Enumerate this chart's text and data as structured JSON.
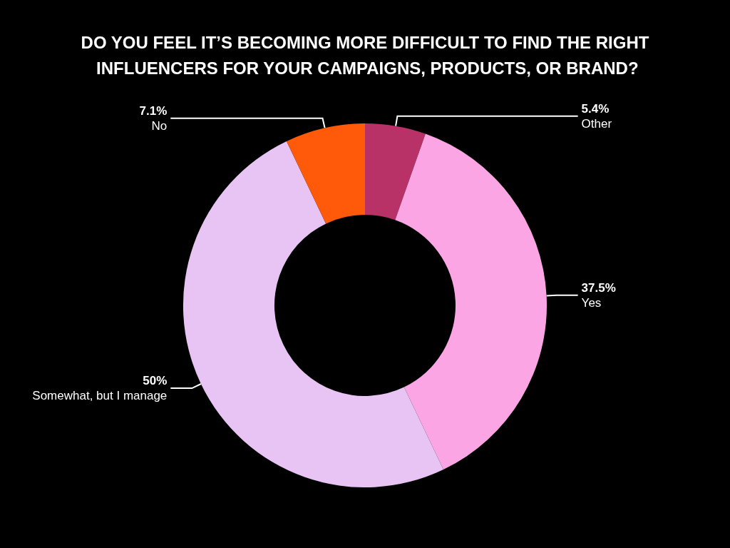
{
  "chart_data": {
    "type": "donut",
    "title": "DO YOU FEEL IT’S BECOMING MORE DIFFICULT TO FIND THE RIGHT INFLUENCERS FOR YOUR CAMPAIGNS, PRODUCTS, OR BRAND?",
    "categories": [
      "Other",
      "Yes",
      "Somewhat, but I manage",
      "No"
    ],
    "values": [
      5.4,
      37.5,
      50,
      7.1
    ],
    "value_labels": [
      "5.4%",
      "37.5%",
      "50%",
      "7.1%"
    ],
    "colors": [
      "#b83268",
      "#fca5e4",
      "#e8c4f4",
      "#ff5a0a"
    ],
    "legend": false
  }
}
